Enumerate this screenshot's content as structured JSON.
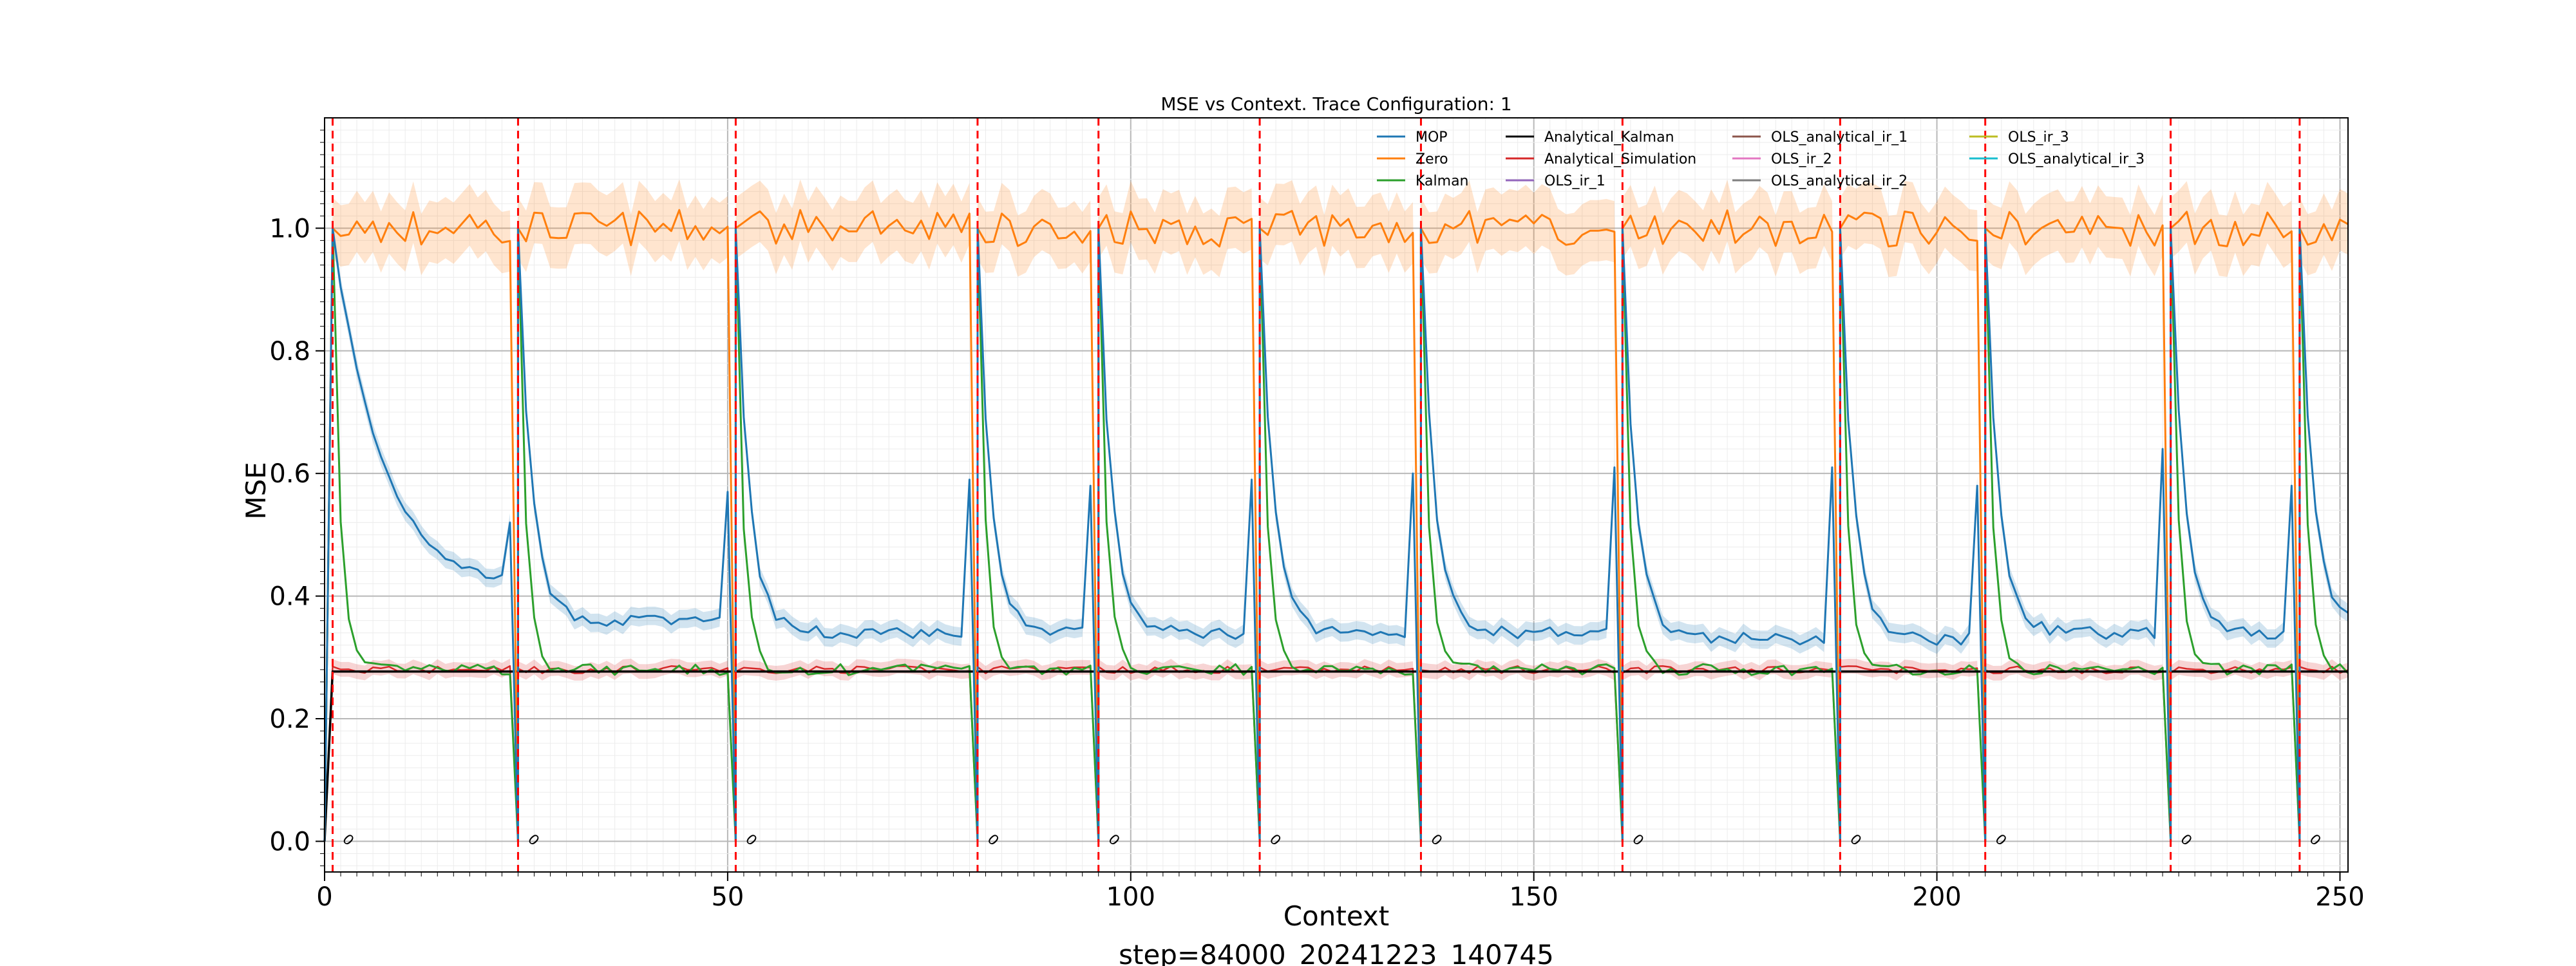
{
  "figure": {
    "footer": "step=84000_20241223_140745"
  },
  "chart_data": {
    "type": "line",
    "title": "MSE vs Context. Trace Configuration: 1",
    "xlabel": "Context",
    "ylabel": "MSE",
    "xlim": [
      0,
      251
    ],
    "ylim": [
      -0.05,
      1.18
    ],
    "xticks": [
      0,
      50,
      100,
      150,
      200,
      250
    ],
    "yticks": [
      0.0,
      0.2,
      0.4,
      0.6,
      0.8,
      1.0
    ],
    "grid": true,
    "legend_position": "top-right",
    "segment_starts": [
      1,
      24,
      51,
      81,
      96,
      116,
      136,
      161,
      188,
      206,
      229,
      245
    ],
    "segment_end": 251,
    "segment_marker_label": "0",
    "series": [
      {
        "name": "MOP",
        "color": "#1f77b4",
        "band": 0.015,
        "description": "per segment: ~1.0 at start, decays to a plateau, spikes at segment end",
        "plateaus": [
          0.41,
          0.36,
          0.34,
          0.34,
          0.34,
          0.34,
          0.34,
          0.33,
          0.33,
          0.34,
          0.34,
          0.35
        ],
        "end_spikes": [
          0.52,
          0.57,
          0.59,
          0.58,
          0.59,
          0.6,
          0.61,
          0.61,
          0.58,
          0.64,
          0.58,
          0.35
        ]
      },
      {
        "name": "Zero",
        "color": "#ff7f0e",
        "band": 0.05,
        "level": 1.0,
        "drop_to": 0.0
      },
      {
        "name": "Kalman",
        "color": "#2ca02c",
        "level": 0.28
      },
      {
        "name": "Analytical_Kalman",
        "color": "#000000",
        "level": 0.277
      },
      {
        "name": "Analytical_Simulation",
        "color": "#d62728",
        "band": 0.012,
        "level": 0.28
      },
      {
        "name": "OLS_ir_1",
        "color": "#9467bd"
      },
      {
        "name": "OLS_analytical_ir_1",
        "color": "#8c564b"
      },
      {
        "name": "OLS_ir_2",
        "color": "#e377c2"
      },
      {
        "name": "OLS_analytical_ir_2",
        "color": "#7f7f7f"
      },
      {
        "name": "OLS_ir_3",
        "color": "#bcbd22"
      },
      {
        "name": "OLS_analytical_ir_3",
        "color": "#17becf"
      }
    ]
  }
}
